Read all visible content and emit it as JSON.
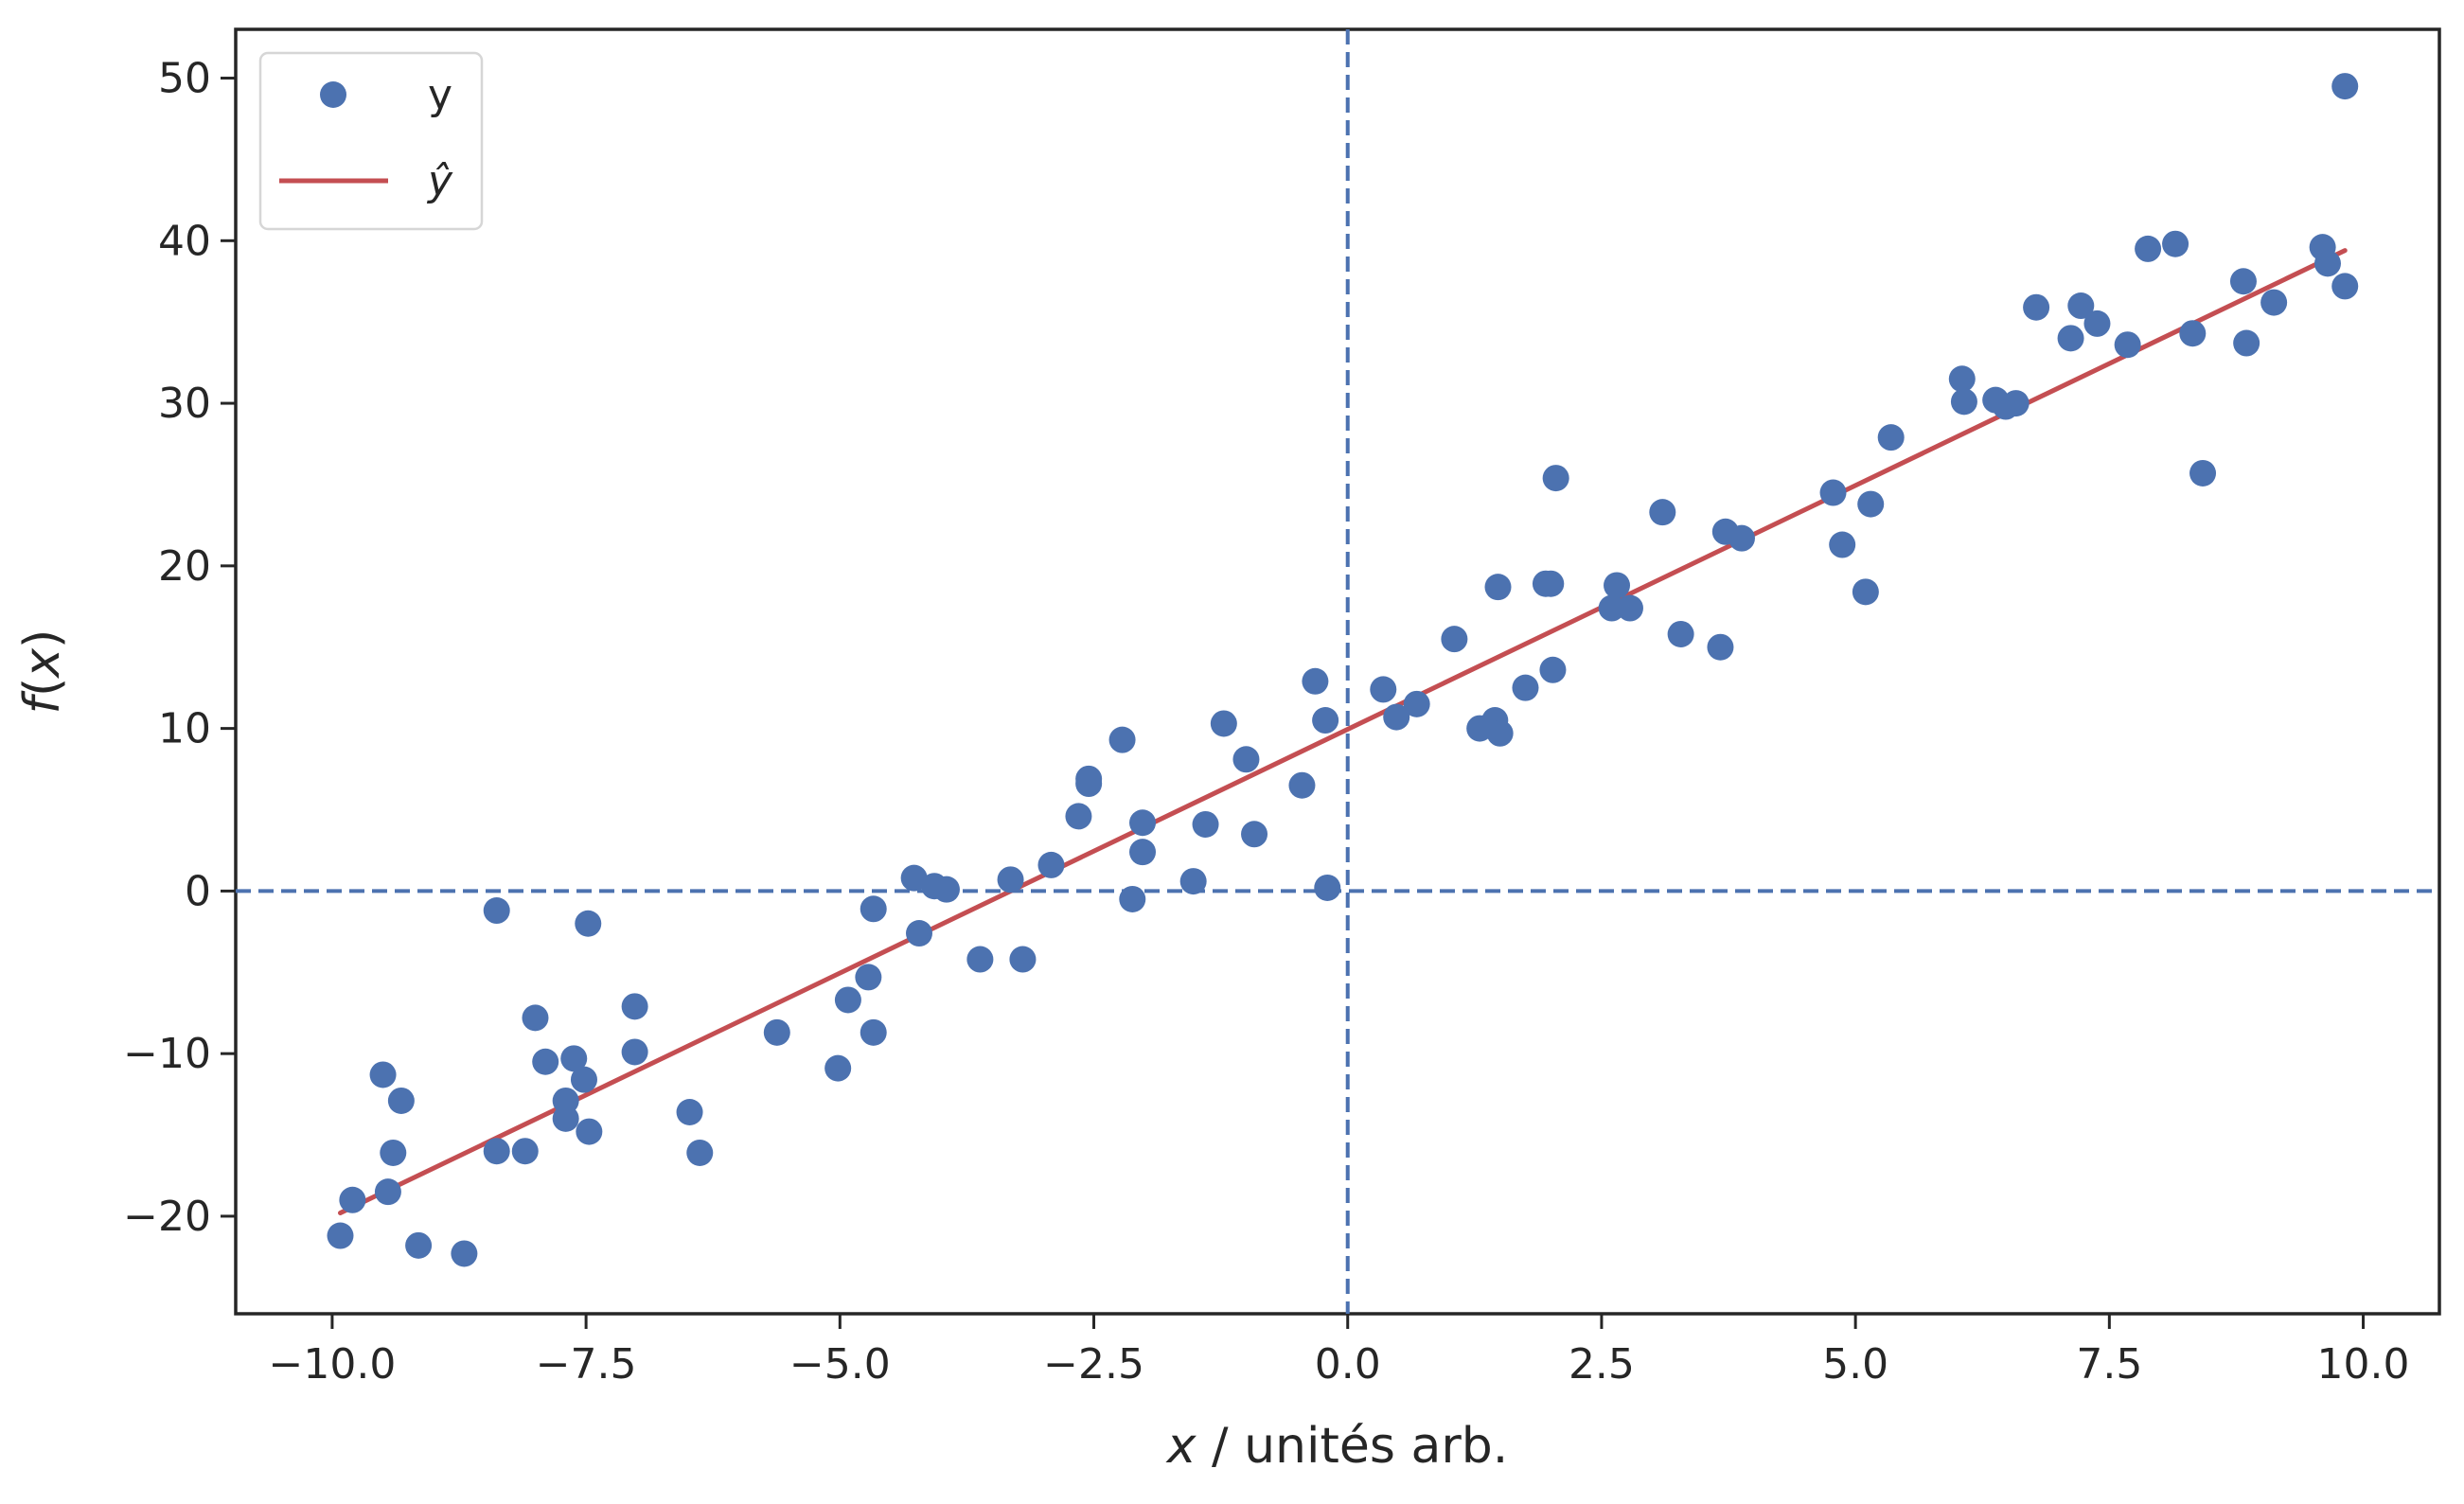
{
  "chart_data": {
    "type": "scatter",
    "xlabel": "x / unités arb.",
    "ylabel": "f(x)",
    "xlim": [
      -10.95,
      10.75
    ],
    "ylim": [
      -26,
      53
    ],
    "xticks": [
      -10.0,
      -7.5,
      -5.0,
      -2.5,
      0.0,
      2.5,
      5.0,
      7.5,
      10.0
    ],
    "xtick_labels": [
      "−10.0",
      "−7.5",
      "−5.0",
      "−2.5",
      "0.0",
      "2.5",
      "5.0",
      "7.5",
      "10.0"
    ],
    "yticks": [
      -20,
      -10,
      0,
      10,
      20,
      30,
      40,
      50
    ],
    "ytick_labels": [
      "−20",
      "−10",
      "0",
      "10",
      "20",
      "30",
      "40",
      "50"
    ],
    "grid": false,
    "legend_position": "top-left",
    "reference_lines": {
      "x": 0,
      "y": 0,
      "style": "dashed",
      "color": "#4c72b0"
    },
    "series": [
      {
        "name": "y",
        "kind": "scatter",
        "color": "#4c72b0",
        "points": [
          [
            -9.92,
            -21.2
          ],
          [
            -9.8,
            -19.0
          ],
          [
            -9.5,
            -11.3
          ],
          [
            -9.45,
            -18.5
          ],
          [
            -9.4,
            -16.1
          ],
          [
            -9.32,
            -12.9
          ],
          [
            -9.15,
            -21.8
          ],
          [
            -8.7,
            -22.3
          ],
          [
            -8.38,
            -1.2
          ],
          [
            -8.38,
            -16.0
          ],
          [
            -8.1,
            -16.0
          ],
          [
            -8.0,
            -7.8
          ],
          [
            -7.9,
            -10.5
          ],
          [
            -7.7,
            -12.9
          ],
          [
            -7.7,
            -14.0
          ],
          [
            -7.62,
            -10.3
          ],
          [
            -7.52,
            -11.6
          ],
          [
            -7.48,
            -2.0
          ],
          [
            -7.47,
            -14.8
          ],
          [
            -7.02,
            -7.1
          ],
          [
            -7.02,
            -9.9
          ],
          [
            -6.48,
            -13.6
          ],
          [
            -6.38,
            -16.1
          ],
          [
            -5.62,
            -8.7
          ],
          [
            -5.02,
            -10.9
          ],
          [
            -4.92,
            -6.7
          ],
          [
            -4.72,
            -5.3
          ],
          [
            -4.67,
            -1.1
          ],
          [
            -4.67,
            -8.7
          ],
          [
            -4.27,
            0.8
          ],
          [
            -4.22,
            -2.6
          ],
          [
            -4.07,
            0.3
          ],
          [
            -3.95,
            0.1
          ],
          [
            -3.62,
            -4.2
          ],
          [
            -3.32,
            0.7
          ],
          [
            -3.2,
            -4.2
          ],
          [
            -2.92,
            1.6
          ],
          [
            -2.65,
            4.6
          ],
          [
            -2.55,
            6.6
          ],
          [
            -2.55,
            6.9
          ],
          [
            -2.22,
            9.3
          ],
          [
            -2.12,
            -0.5
          ],
          [
            -2.02,
            2.4
          ],
          [
            -2.02,
            4.2
          ],
          [
            -1.52,
            0.6
          ],
          [
            -1.4,
            4.1
          ],
          [
            -1.22,
            10.3
          ],
          [
            -1.0,
            8.1
          ],
          [
            -0.92,
            3.5
          ],
          [
            -0.45,
            6.5
          ],
          [
            -0.32,
            12.9
          ],
          [
            -0.22,
            10.5
          ],
          [
            -0.2,
            0.2
          ],
          [
            0.35,
            12.4
          ],
          [
            0.48,
            10.7
          ],
          [
            0.68,
            11.5
          ],
          [
            1.05,
            15.5
          ],
          [
            1.3,
            10.0
          ],
          [
            1.45,
            10.5
          ],
          [
            1.48,
            18.7
          ],
          [
            1.5,
            9.7
          ],
          [
            1.75,
            12.5
          ],
          [
            1.95,
            18.9
          ],
          [
            2.0,
            18.9
          ],
          [
            2.02,
            13.6
          ],
          [
            2.05,
            25.4
          ],
          [
            2.6,
            17.4
          ],
          [
            2.65,
            18.8
          ],
          [
            2.78,
            17.4
          ],
          [
            3.1,
            23.3
          ],
          [
            3.28,
            15.8
          ],
          [
            3.67,
            15.0
          ],
          [
            3.72,
            22.1
          ],
          [
            3.88,
            21.7
          ],
          [
            4.78,
            24.5
          ],
          [
            4.87,
            21.3
          ],
          [
            5.1,
            18.4
          ],
          [
            5.15,
            23.8
          ],
          [
            5.35,
            27.9
          ],
          [
            6.05,
            31.5
          ],
          [
            6.07,
            30.1
          ],
          [
            6.38,
            30.2
          ],
          [
            6.48,
            29.8
          ],
          [
            6.58,
            30.0
          ],
          [
            6.78,
            35.9
          ],
          [
            7.12,
            34.0
          ],
          [
            7.22,
            36.0
          ],
          [
            7.38,
            34.9
          ],
          [
            7.68,
            33.6
          ],
          [
            7.88,
            39.5
          ],
          [
            8.15,
            39.8
          ],
          [
            8.32,
            34.3
          ],
          [
            8.42,
            25.7
          ],
          [
            8.82,
            37.5
          ],
          [
            8.85,
            33.7
          ],
          [
            9.12,
            36.2
          ],
          [
            9.6,
            39.6
          ],
          [
            9.65,
            38.6
          ],
          [
            9.82,
            49.5
          ],
          [
            9.82,
            37.2
          ]
        ]
      },
      {
        "name": "ŷ",
        "kind": "line",
        "color": "#c44e52",
        "x": [
          -9.92,
          9.82
        ],
        "y": [
          -19.8,
          39.4
        ]
      }
    ]
  }
}
